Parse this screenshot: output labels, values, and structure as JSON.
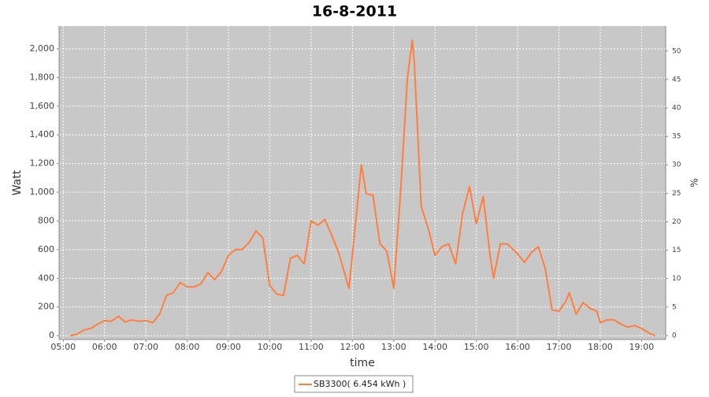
{
  "chart_data": {
    "type": "line",
    "title": "16-8-2011",
    "x_label": "time",
    "y_label": "Watt",
    "y2_label": "%",
    "x": [
      "05:10",
      "05:20",
      "05:30",
      "05:40",
      "05:50",
      "06:00",
      "06:10",
      "06:20",
      "06:30",
      "06:40",
      "06:50",
      "07:00",
      "07:10",
      "07:20",
      "07:30",
      "07:40",
      "07:50",
      "08:00",
      "08:10",
      "08:20",
      "08:30",
      "08:40",
      "08:50",
      "09:00",
      "09:10",
      "09:20",
      "09:30",
      "09:40",
      "09:50",
      "10:00",
      "10:10",
      "10:20",
      "10:30",
      "10:40",
      "10:50",
      "11:00",
      "11:10",
      "11:20",
      "11:30",
      "11:40",
      "11:55",
      "12:13",
      "12:20",
      "12:30",
      "12:40",
      "12:50",
      "13:00",
      "13:10",
      "13:20",
      "13:27",
      "13:30",
      "13:40",
      "13:50",
      "14:00",
      "14:10",
      "14:20",
      "14:30",
      "14:40",
      "14:50",
      "15:00",
      "15:10",
      "15:20",
      "15:25",
      "15:35",
      "15:45",
      "16:00",
      "16:10",
      "16:20",
      "16:30",
      "16:40",
      "16:50",
      "17:00",
      "17:10",
      "17:15",
      "17:25",
      "17:35",
      "17:45",
      "17:55",
      "18:00",
      "18:10",
      "18:20",
      "18:30",
      "18:40",
      "18:50",
      "19:00",
      "19:10",
      "19:20"
    ],
    "series": [
      {
        "name": "SB3300( 6.454 kWh )",
        "color": "#ff7f3f",
        "values": [
          0,
          10,
          40,
          50,
          80,
          105,
          100,
          135,
          95,
          110,
          100,
          105,
          90,
          150,
          280,
          300,
          370,
          340,
          340,
          360,
          440,
          390,
          450,
          560,
          600,
          600,
          650,
          730,
          680,
          350,
          290,
          280,
          540,
          560,
          500,
          800,
          770,
          810,
          700,
          580,
          330,
          1190,
          990,
          980,
          640,
          590,
          330,
          1000,
          1800,
          2060,
          1900,
          900,
          750,
          560,
          620,
          640,
          500,
          850,
          1040,
          780,
          970,
          560,
          400,
          640,
          640,
          570,
          510,
          580,
          620,
          470,
          180,
          170,
          240,
          300,
          150,
          230,
          190,
          170,
          90,
          110,
          110,
          80,
          60,
          70,
          50,
          20,
          0
        ]
      }
    ],
    "xlim": [
      "04:54",
      "19:35"
    ],
    "xticks": [
      "05:00",
      "06:00",
      "07:00",
      "08:00",
      "09:00",
      "10:00",
      "11:00",
      "12:00",
      "13:00",
      "14:00",
      "15:00",
      "16:00",
      "17:00",
      "18:00",
      "19:00"
    ],
    "ylim": [
      -27,
      2159
    ],
    "yticks": [
      0,
      200,
      400,
      600,
      800,
      {
        "value": 1000,
        "label": "1,000"
      },
      {
        "value": 1200,
        "label": "1,200"
      },
      {
        "value": 1400,
        "label": "1,400"
      },
      {
        "value": 1600,
        "label": "1,600"
      },
      {
        "value": 1800,
        "label": "1,800"
      },
      {
        "value": 2000,
        "label": "2,000"
      }
    ],
    "y2lim": [
      -0.7,
      54.4
    ],
    "y2ticks": [
      0,
      5,
      10,
      15,
      20,
      25,
      30,
      35,
      40,
      45,
      50
    ],
    "grid": true
  }
}
